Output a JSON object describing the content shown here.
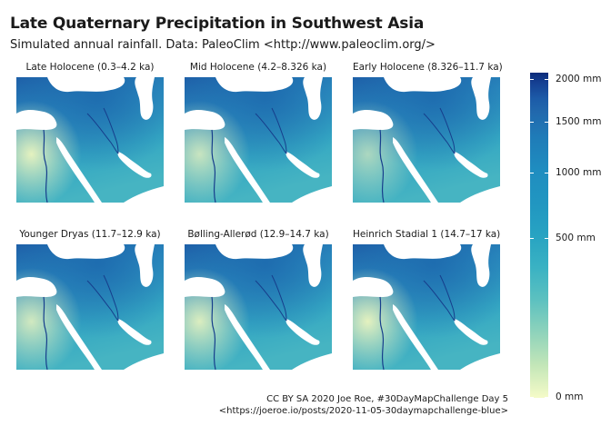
{
  "title": "Late Quaternary Precipitation in Southwest Asia",
  "subtitle": "Simulated annual rainfall. Data: PaleoClim <http://www.paleoclim.org/>",
  "panels": [
    {
      "label": "Late Holocene (0.3–4.2 ka)",
      "wet": 0.0
    },
    {
      "label": "Mid Holocene (4.2–8.326 ka)",
      "wet": 0.15
    },
    {
      "label": "Early Holocene (8.326–11.7 ka)",
      "wet": 0.3
    },
    {
      "label": "Younger Dryas (11.7–12.9 ka)",
      "wet": 0.1
    },
    {
      "label": "Bølling-Allerød (12.9–14.7 ka)",
      "wet": 0.05
    },
    {
      "label": "Heinrich Stadial 1 (14.7–17 ka)",
      "wet": 0.0
    }
  ],
  "legend": {
    "unit": "mm",
    "max_value": 2000,
    "ticks": [
      {
        "value": 2000,
        "label": "2000 mm"
      },
      {
        "value": 1500,
        "label": "1500 mm"
      },
      {
        "value": 1000,
        "label": "1000 mm"
      },
      {
        "value": 500,
        "label": "500 mm"
      },
      {
        "value": 0,
        "label": "0 mm"
      }
    ],
    "colors": {
      "high": "#0b2b7a",
      "mid": "#2196c1",
      "low": "#f5fbc8"
    }
  },
  "colors": {
    "sea": "#ffffff",
    "rivers": "#163e8c",
    "dry_land": "#eef6bf",
    "land": "#2c9fc4",
    "wet_land": "#1d6aae"
  },
  "caption": {
    "line1": "CC BY SA 2020 Joe Roe, #30DayMapChallenge Day 5",
    "line2": "<https://joeroe.io/posts/2020-11-05-30daymapchallenge-blue>"
  }
}
